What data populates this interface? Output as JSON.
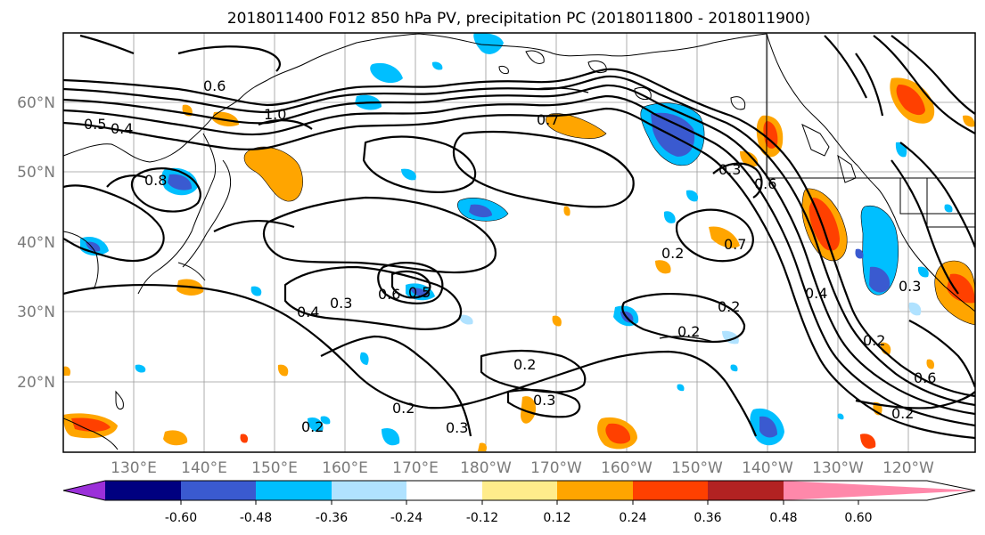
{
  "title": "2018011400 F012 850 hPa PV, precipitation PC (2018011800 - 2018011900)",
  "lat_ticks": [
    "60°N",
    "50°N",
    "40°N",
    "30°N",
    "20°N"
  ],
  "lon_ticks": [
    "130°E",
    "140°E",
    "150°E",
    "160°E",
    "170°E",
    "180°W",
    "170°W",
    "160°W",
    "150°W",
    "140°W",
    "130°W",
    "120°W"
  ],
  "colorbar": {
    "colors": [
      "#9b30d9",
      "#000080",
      "#3a5ad0",
      "#00bfff",
      "#b0e2ff",
      "#ffffff",
      "#ffec8b",
      "#ffa500",
      "#ff4000",
      "#b22222",
      "#ff88aa"
    ],
    "tick_labels": [
      "-0.60",
      "-0.48",
      "-0.36",
      "-0.24",
      "-0.12",
      "0.12",
      "0.24",
      "0.36",
      "0.48",
      "0.60"
    ]
  },
  "contour_labels": [
    "0.5",
    "0.4",
    "1.0",
    "0.8",
    "0.6",
    "0.7",
    "0.3",
    "0.2",
    "0.6",
    "0.3",
    "0.4",
    "0.6",
    "0.5",
    "0.2",
    "0.2",
    "0.3",
    "0.2",
    "0.2",
    "0.3",
    "0.2",
    "0.3",
    "0.4",
    "0.7",
    "0.2",
    "0.6",
    "0.2"
  ]
}
